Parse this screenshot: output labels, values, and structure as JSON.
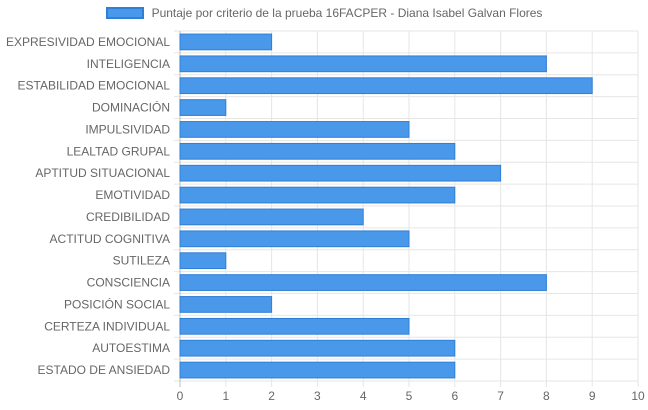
{
  "chart_data": {
    "type": "bar",
    "orientation": "horizontal",
    "categories": [
      "EXPRESIVIDAD EMOCIONAL",
      "INTELIGENCIA",
      "ESTABILIDAD EMOCIONAL",
      "DOMINACIÓN",
      "IMPULSIVIDAD",
      "LEALTAD GRUPAL",
      "APTITUD SITUACIONAL",
      "EMOTIVIDAD",
      "CREDIBILIDAD",
      "ACTITUD COGNITIVA",
      "SUTILEZA",
      "CONSCIENCIA",
      "POSICIÓN SOCIAL",
      "CERTEZA INDIVIDUAL",
      "AUTOESTIMA",
      "ESTADO DE ANSIEDAD"
    ],
    "series": [
      {
        "name": "Puntaje por criterio de la prueba 16FACPER - Diana Isabel Galvan Flores",
        "values": [
          2,
          8,
          9,
          1,
          5,
          6,
          7,
          6,
          4,
          5,
          1,
          8,
          2,
          5,
          6,
          6
        ]
      }
    ],
    "xlim": [
      0,
      10
    ],
    "xticks": [
      "0",
      "1",
      "2",
      "3",
      "4",
      "5",
      "6",
      "7",
      "8",
      "9",
      "10"
    ],
    "grid": true,
    "legend_position": "top",
    "colors": {
      "bar_fill": "#4a98ea",
      "bar_border": "#2f7fd6",
      "grid": "#e6e6e6",
      "axis": "#bdbdbd",
      "text": "#666666"
    }
  }
}
